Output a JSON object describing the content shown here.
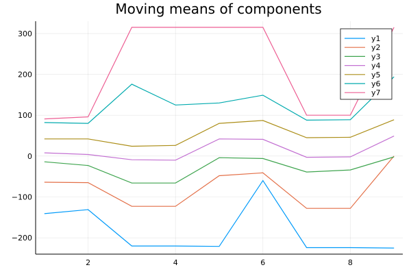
{
  "chart_data": {
    "type": "line",
    "title": "Moving means of components",
    "xlabel": "",
    "ylabel": "",
    "xlim": [
      0.8,
      9.2
    ],
    "ylim": [
      -240,
      330
    ],
    "xticks": [
      2,
      4,
      6,
      8
    ],
    "yticks": [
      -200,
      -100,
      0,
      100,
      200,
      300
    ],
    "grid": true,
    "legend_position": "top-right",
    "x": [
      1,
      2,
      3,
      4,
      5,
      6,
      7,
      8,
      9
    ],
    "series": [
      {
        "name": "y1",
        "color": "#009AFA",
        "values": [
          -141,
          -131,
          -220,
          -220,
          -221,
          -60,
          -224,
          -224,
          -225
        ]
      },
      {
        "name": "y2",
        "color": "#E36F47",
        "values": [
          -64,
          -65,
          -123,
          -123,
          -48,
          -41,
          -128,
          -128,
          0
        ]
      },
      {
        "name": "y3",
        "color": "#3EA44E",
        "values": [
          -14,
          -23,
          -66,
          -66,
          -4,
          -6,
          -39,
          -34,
          -2
        ]
      },
      {
        "name": "y4",
        "color": "#C371D2",
        "values": [
          8,
          4,
          -9,
          -10,
          42,
          41,
          -3,
          -2,
          49
        ]
      },
      {
        "name": "y5",
        "color": "#AC8E18",
        "values": [
          42,
          42,
          24,
          26,
          80,
          87,
          45,
          46,
          89
        ]
      },
      {
        "name": "y6",
        "color": "#00AAAE",
        "values": [
          82,
          80,
          176,
          125,
          130,
          149,
          88,
          89,
          194
        ]
      },
      {
        "name": "y7",
        "color": "#ED5E93",
        "values": [
          91,
          96,
          315,
          315,
          315,
          315,
          100,
          100,
          315
        ]
      }
    ]
  }
}
